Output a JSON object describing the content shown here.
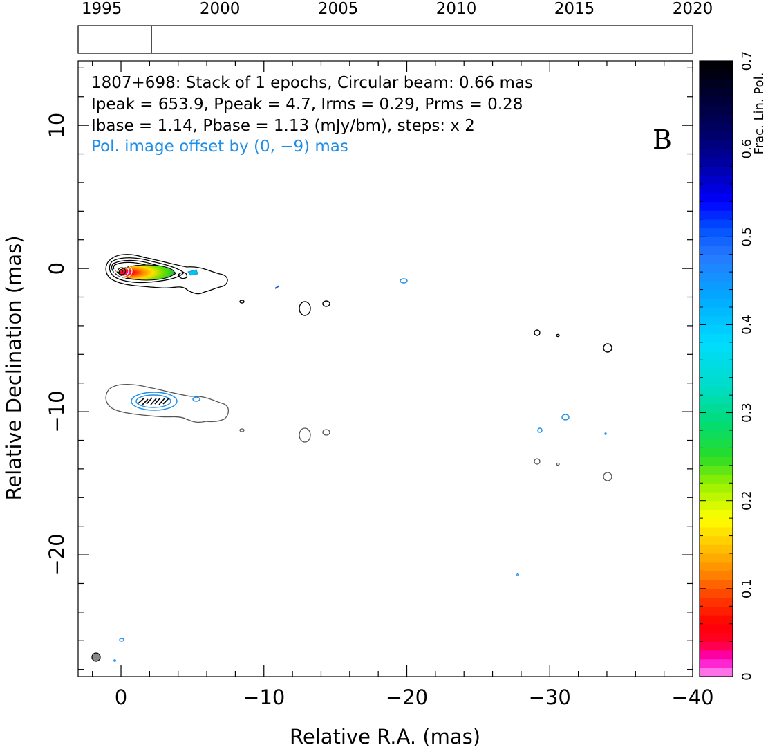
{
  "chart_data": {
    "type": "contour_map",
    "source": "1807+698",
    "annotation_lines": [
      "1807+698: Stack of 1 epochs, Circular beam: 0.66 mas",
      "Ipeak = 653.9, Ppeak = 4.7, Irms = 0.29, Prms = 0.28",
      "Ibase = 1.14, Pbase = 1.13 (mJy/bm), steps: x 2"
    ],
    "offset_note": "Pol. image offset by (0, −9) mas",
    "panel_label": "B",
    "xlabel": "Relative R.A. (mas)",
    "ylabel": "Relative Declination (mas)",
    "xlim": [
      3,
      -40
    ],
    "ylim": [
      -28.5,
      14.5
    ],
    "x_ticks": [
      0,
      -10,
      -20,
      -30,
      -40
    ],
    "x_tick_labels": [
      "0",
      "−10",
      "−20",
      "−30",
      "−40"
    ],
    "y_ticks": [
      10,
      0,
      -10,
      -20
    ],
    "y_tick_labels": [
      "10",
      "0",
      "−10",
      "−20"
    ],
    "timeline": {
      "ticks": [
        1995,
        2000,
        2005,
        2010,
        2015,
        2020
      ],
      "tick_labels": [
        "1995",
        "2000",
        "2005",
        "2010",
        "2015",
        "2020"
      ],
      "range": [
        1994,
        2020
      ],
      "epochs": [
        1997.1
      ]
    },
    "colorbar": {
      "label": "Frac. Lin. Pol.",
      "range": [
        0,
        0.7
      ],
      "ticks": [
        0,
        0.1,
        0.2,
        0.3,
        0.4,
        0.5,
        0.6,
        0.7
      ],
      "tick_labels": [
        "0",
        "0.1",
        "0.2",
        "0.3",
        "0.4",
        "0.5",
        "0.6",
        "0.7"
      ]
    },
    "beam_mas": 0.66,
    "ipeak_mJy": 653.9,
    "ppeak_mJy": 4.7
  },
  "colors": {
    "pol_text": "#1f8ee8",
    "pol_contour": "#1f8ee8",
    "offset_contour": "#555555",
    "stokes_contour": "#000000"
  }
}
